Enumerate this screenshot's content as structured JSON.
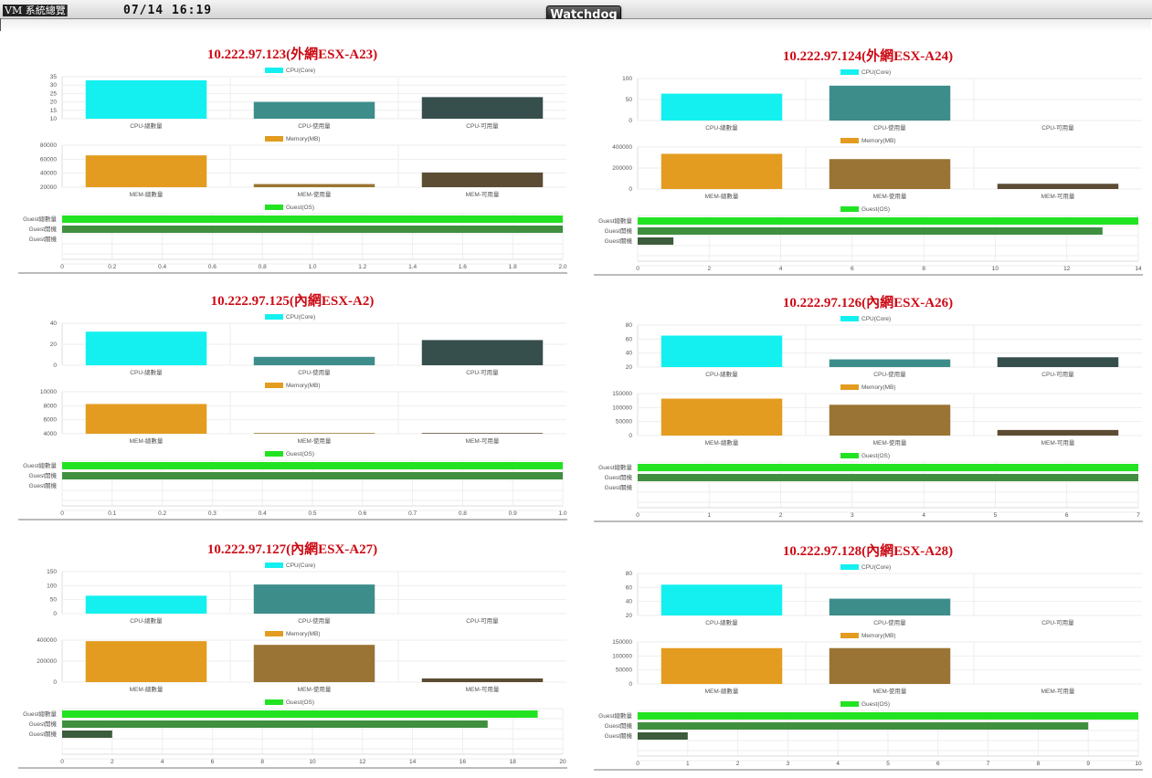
{
  "header": {
    "app_title": "VM 系統總覽",
    "clock": "07/14 16:19",
    "logo": "Watchdog"
  },
  "colors": {
    "cpu_total": "#14f0f0",
    "cpu_used": "#3d8d8b",
    "cpu_free": "#374f4c",
    "mem_total": "#e39c1f",
    "mem_used": "#9a7434",
    "mem_free": "#5b4c33",
    "guest_total": "#22e322",
    "guest_on": "#3f8f3f",
    "guest_off": "#3c5c3c",
    "title": "#cc0a14"
  },
  "legends": {
    "cpu": "CPU(Core)",
    "memory": "Memory(MB)",
    "guest": "Guest(OS)"
  },
  "labels": {
    "cpu": [
      "CPU-總數量",
      "CPU-使用量",
      "CPU-可用量"
    ],
    "mem": [
      "MEM-總數量",
      "MEM-使用量",
      "MEM-可用量"
    ],
    "guest": [
      "Guest總數量",
      "Guest開機",
      "Guest關機"
    ]
  },
  "panels": [
    {
      "title": "10.222.97.123(外網ESX-A23)",
      "cpu": {
        "values": [
          32,
          14,
          18
        ],
        "ylim": [
          0,
          35
        ],
        "ticks": [
          "35",
          "30",
          "25",
          "20",
          "15",
          "10"
        ]
      },
      "mem": {
        "values": [
          65500,
          24500,
          41000
        ],
        "ylim": [
          20000,
          80000
        ],
        "ticks": [
          "80000",
          "60000",
          "40000",
          "20000"
        ]
      },
      "guest": {
        "values": [
          2,
          2,
          0
        ],
        "xlim": [
          0,
          2
        ],
        "ticks": [
          "0",
          "0.2",
          "0.4",
          "0.6",
          "0.8",
          "1.0",
          "1.2",
          "1.4",
          "1.6",
          "1.8",
          "2.0"
        ]
      }
    },
    {
      "title": "10.222.97.124(外網ESX-A24)",
      "cpu": {
        "values": [
          64,
          83,
          0
        ],
        "ylim": [
          0,
          100
        ],
        "ticks": [
          "100",
          "50",
          "0"
        ]
      },
      "mem": {
        "values": [
          335000,
          285000,
          50000
        ],
        "ylim": [
          0,
          400000
        ],
        "ticks": [
          "400000",
          "200000",
          "0"
        ]
      },
      "guest": {
        "values": [
          14,
          13,
          1
        ],
        "xlim": [
          0,
          14
        ],
        "ticks": [
          "0",
          "2",
          "4",
          "6",
          "8",
          "10",
          "12",
          "14"
        ]
      }
    },
    {
      "title": "10.222.97.125(內網ESX-A2)",
      "cpu": {
        "values": [
          32,
          8,
          24
        ],
        "ylim": [
          0,
          40
        ],
        "ticks": [
          "40",
          "20",
          "0"
        ]
      },
      "mem": {
        "values": [
          8250,
          4100,
          4100
        ],
        "ylim": [
          4000,
          10000
        ],
        "ticks": [
          "10000",
          "8000",
          "6000",
          "4000"
        ]
      },
      "guest": {
        "values": [
          1,
          1,
          0
        ],
        "xlim": [
          0,
          1
        ],
        "ticks": [
          "0",
          "0.1",
          "0.2",
          "0.3",
          "0.4",
          "0.5",
          "0.6",
          "0.7",
          "0.8",
          "0.9",
          "1.0"
        ]
      }
    },
    {
      "title": "10.222.97.126(內網ESX-A26)",
      "cpu": {
        "values": [
          65,
          31,
          34
        ],
        "ylim": [
          20,
          80
        ],
        "ticks": [
          "80",
          "60",
          "40",
          "20"
        ]
      },
      "mem": {
        "values": [
          132000,
          110000,
          20000
        ],
        "ylim": [
          0,
          150000
        ],
        "ticks": [
          "150000",
          "100000",
          "50000",
          "0"
        ]
      },
      "guest": {
        "values": [
          7,
          7,
          0
        ],
        "xlim": [
          0,
          7
        ],
        "ticks": [
          "0",
          "1",
          "2",
          "3",
          "4",
          "5",
          "6",
          "7"
        ]
      }
    },
    {
      "title": "10.222.97.127(內網ESX-A27)",
      "cpu": {
        "values": [
          64,
          104,
          0
        ],
        "ylim": [
          0,
          150
        ],
        "ticks": [
          "150",
          "100",
          "50",
          "0"
        ]
      },
      "mem": {
        "values": [
          390000,
          355000,
          35000
        ],
        "ylim": [
          0,
          400000
        ],
        "ticks": [
          "400000",
          "200000",
          "0"
        ]
      },
      "guest": {
        "values": [
          19,
          17,
          2
        ],
        "xlim": [
          0,
          20
        ],
        "ticks": [
          "0",
          "2",
          "4",
          "6",
          "8",
          "10",
          "12",
          "14",
          "16",
          "18",
          "20"
        ]
      }
    },
    {
      "title": "10.222.97.128(內網ESX-A28)",
      "cpu": {
        "values": [
          64,
          44,
          0
        ],
        "ylim": [
          20,
          80
        ],
        "ticks": [
          "80",
          "60",
          "40",
          "20"
        ]
      },
      "mem": {
        "values": [
          128000,
          128000,
          0
        ],
        "ylim": [
          0,
          150000
        ],
        "ticks": [
          "150000",
          "100000",
          "50000",
          "0"
        ]
      },
      "guest": {
        "values": [
          10,
          9,
          1
        ],
        "xlim": [
          0,
          10
        ],
        "ticks": [
          "0",
          "1",
          "2",
          "3",
          "4",
          "5",
          "6",
          "7",
          "8",
          "9",
          "10"
        ]
      }
    }
  ]
}
